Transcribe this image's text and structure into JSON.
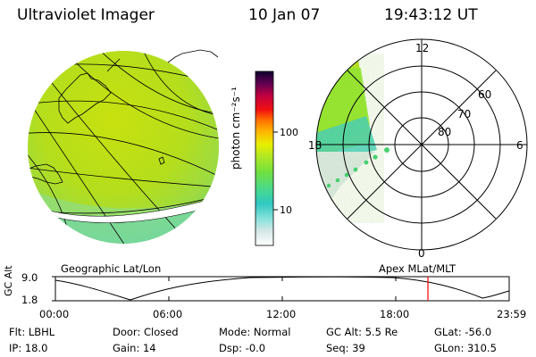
{
  "header": {
    "instrument": "Ultraviolet Imager",
    "date": "10 Jan 07",
    "time": "19:43:12 UT"
  },
  "colorbar": {
    "unit_label": "photon cm⁻²s⁻¹",
    "ticks": [
      "100",
      "10"
    ],
    "scale": "log"
  },
  "geo_panel": {
    "caption": "Geographic Lat/Lon"
  },
  "polar_panel": {
    "caption": "Apex MLat/MLT",
    "mlt_labels": [
      "12",
      "18",
      "6",
      "0"
    ],
    "mlat_labels": [
      "60",
      "70",
      "80"
    ]
  },
  "altitude_plot": {
    "ylabel": "GC Alt",
    "yticks": [
      "9.0",
      "1.8"
    ],
    "xticks": [
      "00:00",
      "06:00",
      "12:00",
      "18:00",
      "23:59"
    ],
    "marker_time": "19:43",
    "marker_color": "#ff0000"
  },
  "status": {
    "flt_label": "Flt:",
    "flt_value": "LBHL",
    "ip_label": "IP:",
    "ip_value": "18.0",
    "door_label": "Door:",
    "door_value": "Closed",
    "gain_label": "Gain:",
    "gain_value": "14",
    "mode_label": "Mode:",
    "mode_value": "Normal",
    "dsp_label": "Dsp:",
    "dsp_value": "-0.0",
    "gcalt_label": "GC Alt:",
    "gcalt_value": "5.5 Re",
    "seq_label": "Seq:",
    "seq_value": "39",
    "glat_label": "GLat:",
    "glat_value": "-56.0",
    "glon_label": "GLon:",
    "glon_value": "310.5"
  },
  "colors": {
    "emission_high": "#c8e600",
    "emission_mid": "#8ee830",
    "emission_low": "#40d8c8",
    "background_faint": "#e8f0f0"
  }
}
